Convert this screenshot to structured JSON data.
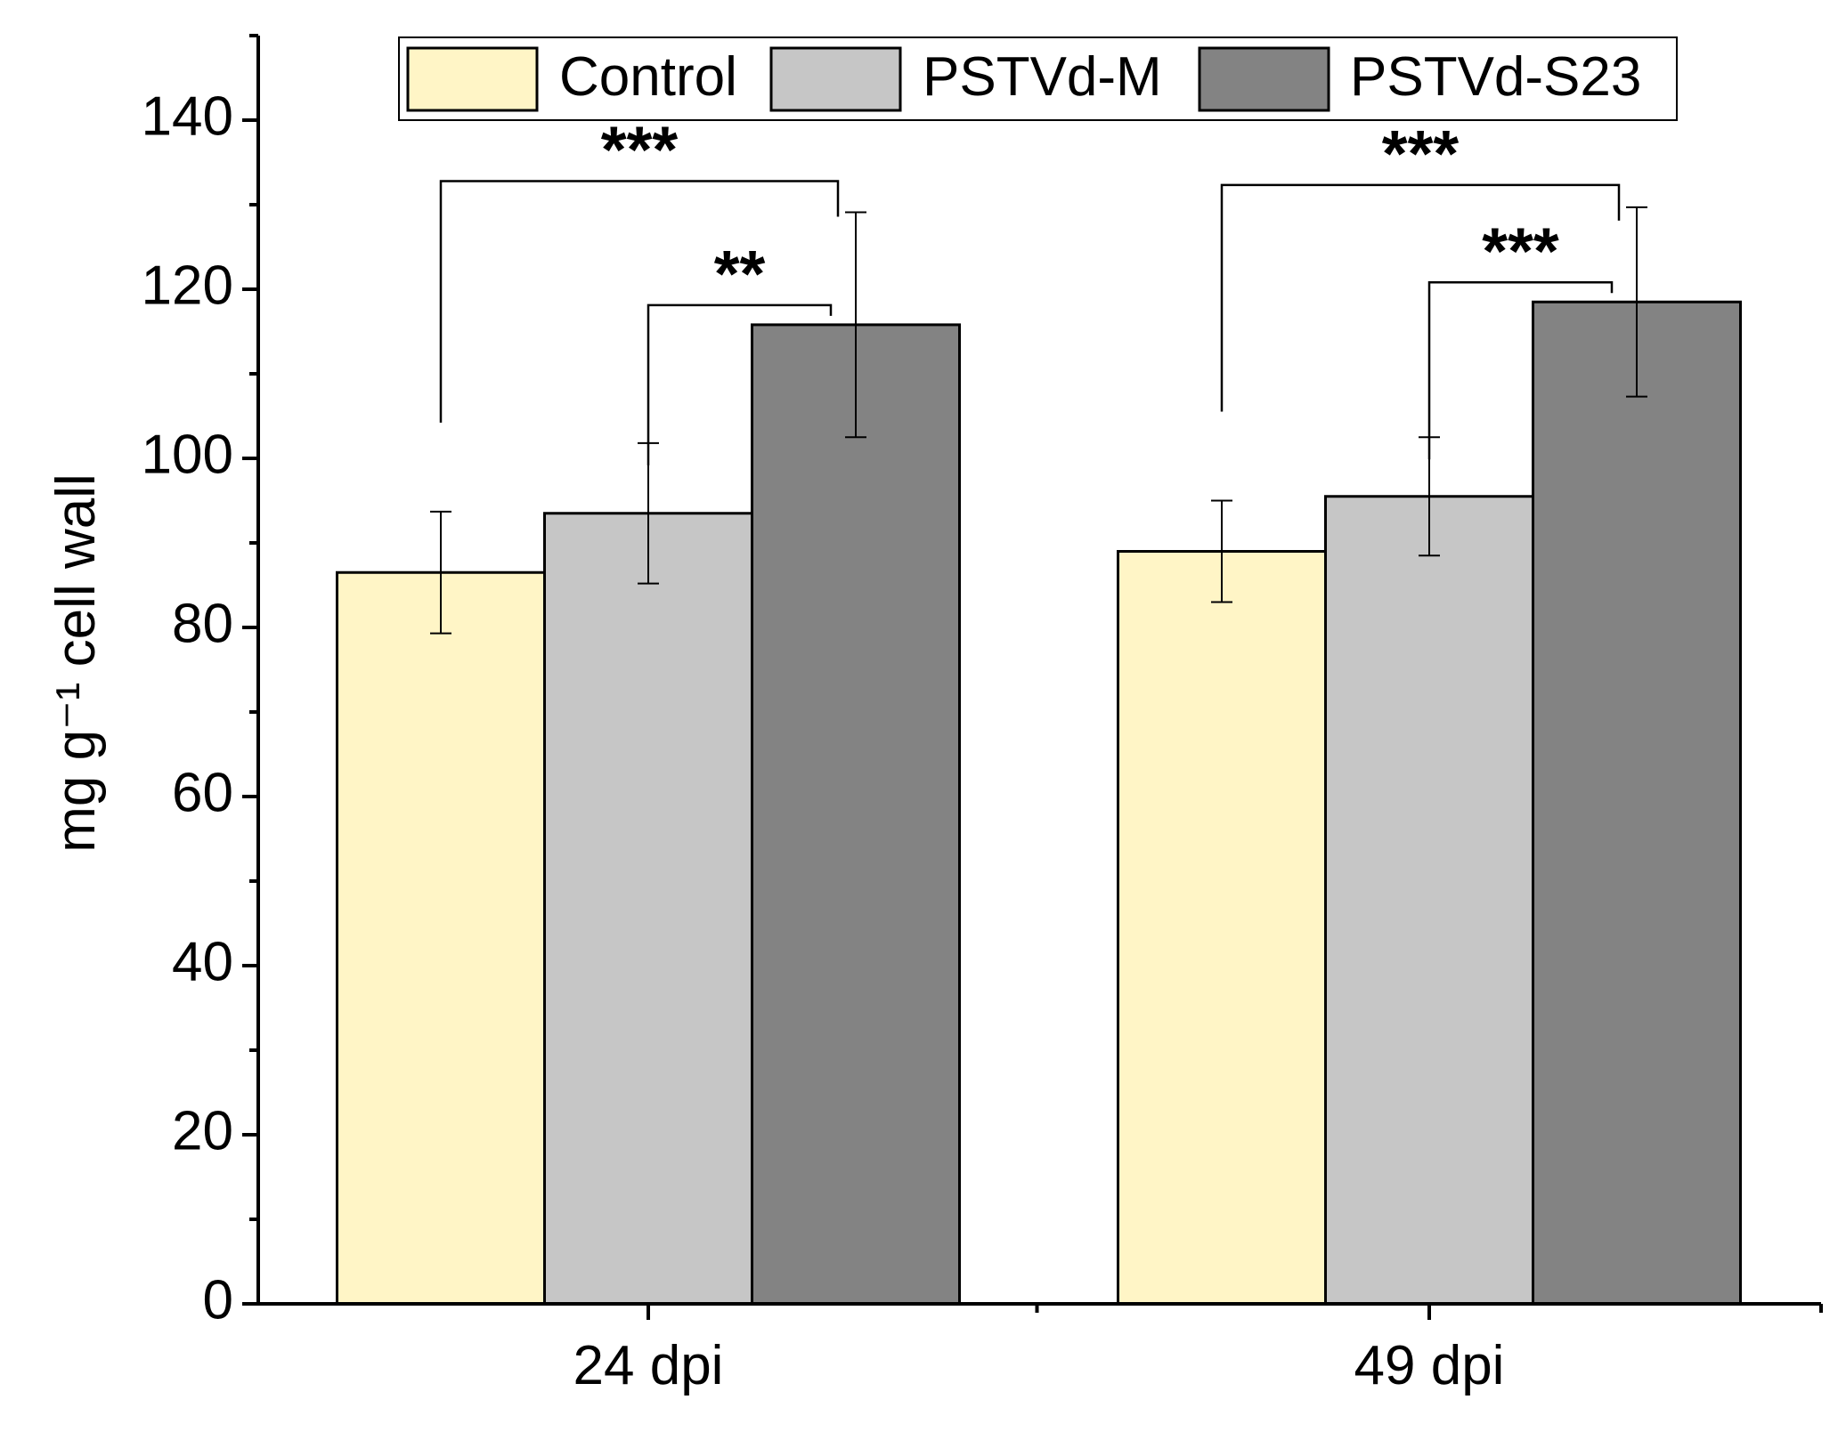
{
  "chart_data": {
    "type": "bar",
    "title": "",
    "xlabel": "",
    "ylabel": "mg g⁻¹ cell wall",
    "ylim": [
      0,
      150
    ],
    "yticks": [
      0,
      20,
      40,
      60,
      80,
      100,
      120,
      140
    ],
    "categories": [
      "24 dpi",
      "49 dpi"
    ],
    "series": [
      {
        "name": "Control",
        "color": "#fff5c6",
        "values": [
          86.5,
          89
        ],
        "errors": [
          7.2,
          6
        ]
      },
      {
        "name": "PSTVd-M",
        "color": "#c6c6c6",
        "values": [
          93.5,
          95.5
        ],
        "errors": [
          8.3,
          7
        ]
      },
      {
        "name": "PSTVd-S23",
        "color": "#838383",
        "values": [
          115.8,
          118.5
        ],
        "errors": [
          13.3,
          11.2
        ]
      }
    ],
    "legend_position": "top-center",
    "significance": [
      {
        "category": 0,
        "from": 0,
        "to": 2,
        "label": "***"
      },
      {
        "category": 0,
        "from": 1,
        "to": 2,
        "label": "**"
      },
      {
        "category": 1,
        "from": 0,
        "to": 2,
        "label": "***"
      },
      {
        "category": 1,
        "from": 1,
        "to": 2,
        "label": "***"
      }
    ]
  }
}
